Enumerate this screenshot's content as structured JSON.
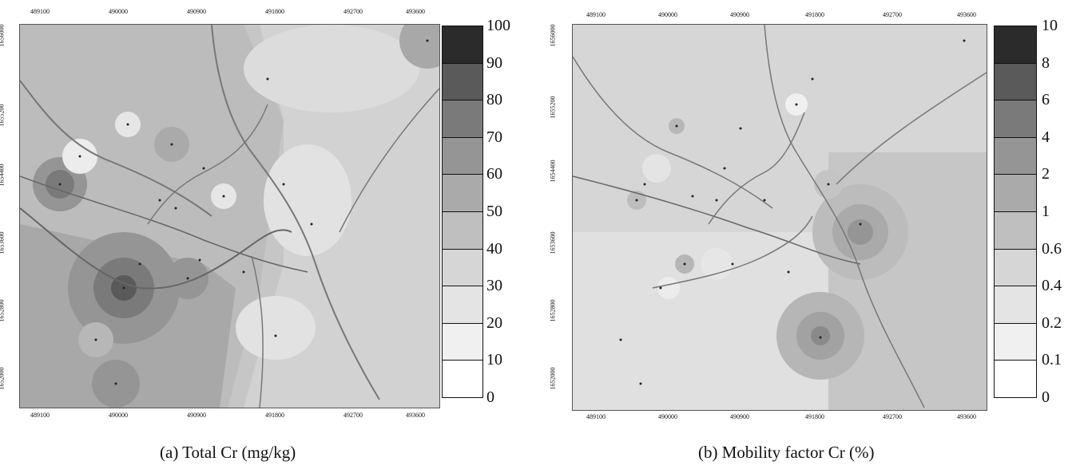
{
  "panels": [
    {
      "caption": "(a) Total Cr (mg/kg)",
      "x_ticks": [
        "489100",
        "490000",
        "490900",
        "491800",
        "492700",
        "493600"
      ],
      "y_ticks": [
        "1656000",
        "1655200",
        "1654400",
        "1653600",
        "1652800",
        "1652000"
      ],
      "legend_labels": [
        "100",
        "90",
        "80",
        "70",
        "60",
        "50",
        "40",
        "30",
        "20",
        "10",
        "0"
      ],
      "legend_colors": [
        "#2b2b2b",
        "#5a5a5a",
        "#7a7a7a",
        "#959595",
        "#aaaaaa",
        "#bfbfbf",
        "#d6d6d6",
        "#e4e4e4",
        "#f0f0f0",
        "#ffffff"
      ]
    },
    {
      "caption": "(b) Mobility factor Cr (%)",
      "x_ticks": [
        "489100",
        "490000",
        "490900",
        "491800",
        "492700",
        "493600"
      ],
      "y_ticks": [
        "1656000",
        "1655200",
        "1654400",
        "1653600",
        "1652800",
        "1652000"
      ],
      "legend_labels": [
        "10",
        "8",
        "6",
        "4",
        "2",
        "1",
        "0.6",
        "0.4",
        "0.2",
        "0.1",
        "0"
      ],
      "legend_colors": [
        "#2b2b2b",
        "#5a5a5a",
        "#7a7a7a",
        "#959595",
        "#aaaaaa",
        "#bfbfbf",
        "#d6d6d6",
        "#e4e4e4",
        "#f0f0f0",
        "#ffffff"
      ]
    }
  ]
}
